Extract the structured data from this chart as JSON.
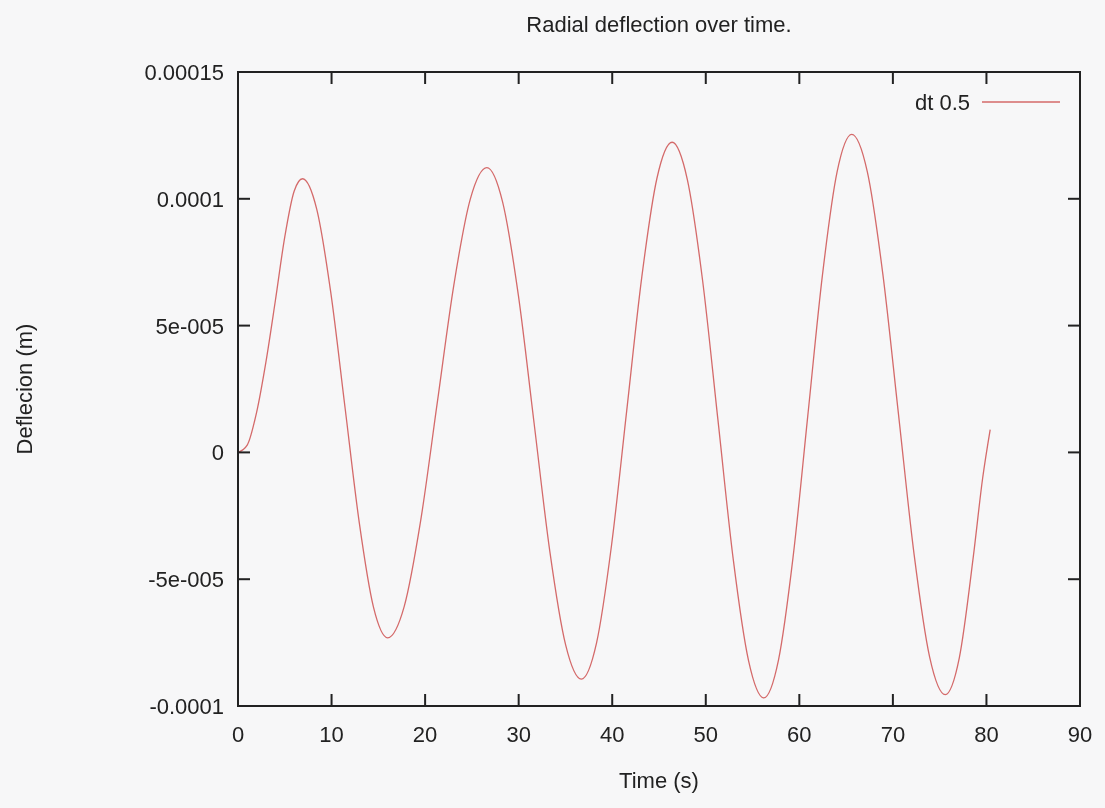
{
  "chart_data": {
    "type": "line",
    "title": "Radial deflection over time.",
    "xlabel": "Time (s)",
    "ylabel": "Deflecion (m)",
    "xlim": [
      0,
      90
    ],
    "xticks": [
      0,
      10,
      20,
      30,
      40,
      50,
      60,
      70,
      80,
      90
    ],
    "ylim": [
      -0.0001,
      0.00015
    ],
    "yticks": [
      {
        "value": -0.0001,
        "label": "-0.0001"
      },
      {
        "value": -5e-05,
        "label": "-5e-005"
      },
      {
        "value": 0,
        "label": "0"
      },
      {
        "value": 5e-05,
        "label": "5e-005"
      },
      {
        "value": 0.0001,
        "label": "0.0001"
      },
      {
        "value": 0.00015,
        "label": "0.00015"
      }
    ],
    "grid": false,
    "legend": "top right",
    "marker": "none",
    "line_style": "solid",
    "series": [
      {
        "name": "dt 0.5",
        "color": "#d46a6a",
        "x": [
          0,
          1,
          2,
          3,
          4,
          5,
          6,
          6.9,
          8.42,
          9.93,
          11.45,
          12.97,
          14.48,
          16.0,
          17.77,
          19.53,
          21.3,
          23.07,
          24.83,
          26.6,
          28.28,
          29.97,
          31.65,
          33.33,
          35.02,
          36.7,
          38.32,
          39.93,
          41.55,
          43.17,
          44.78,
          46.4,
          48.03,
          49.67,
          51.3,
          52.93,
          54.57,
          56.2,
          57.77,
          59.33,
          60.9,
          62.47,
          64.03,
          65.6,
          67.27,
          68.93,
          70.6,
          72.27,
          73.93,
          75.6,
          77.1,
          78.6,
          79.6,
          80.4
        ],
        "values": [
          0,
          3e-06,
          1.6e-05,
          3.6e-05,
          6e-05,
          8.5e-05,
          0.000103,
          0.0001079,
          9.58e-05,
          6.27e-05,
          1.74e-05,
          -2.79e-05,
          -6.1e-05,
          -7.31e-05,
          -6.07e-05,
          -2.68e-05,
          1.96e-05,
          6.6e-05,
          9.99e-05,
          0.0001123,
          9.88e-05,
          6.19e-05,
          1.15e-05,
          -3.9e-05,
          -7.59e-05,
          -8.94e-05,
          -7.52e-05,
          -3.65e-05,
          1.65e-05,
          6.94e-05,
          0.0001081,
          0.0001223,
          0.0001076,
          6.75e-05,
          1.28e-05,
          -4.2e-05,
          -8.21e-05,
          -9.68e-05,
          -8.19e-05,
          -4.13e-05,
          1.43e-05,
          6.99e-05,
          0.0001105,
          0.0001254,
          0.0001106,
          7.02e-05,
          1.5e-05,
          -4.03e-05,
          -8.07e-05,
          -9.55e-05,
          -8.1e-05,
          -4.1e-05,
          -1e-05,
          9e-06
        ]
      }
    ]
  }
}
